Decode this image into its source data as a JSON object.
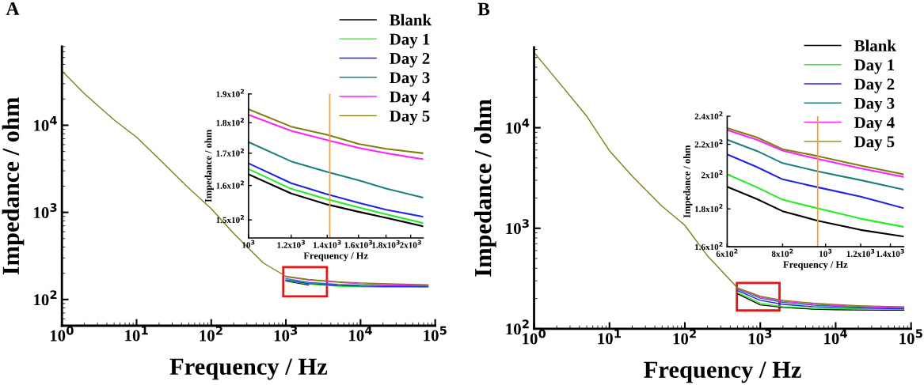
{
  "chart_data": [
    {
      "type": "line",
      "title": "A",
      "xlabel": "Frequency / Hz",
      "ylabel": "Impedance / ohm",
      "log": "xy",
      "legend": "top right",
      "x": [
        1,
        2,
        5,
        10,
        20,
        50,
        100,
        200,
        500,
        1000,
        2000,
        5000,
        10000,
        20000,
        50000,
        80000
      ],
      "xlim": [
        1,
        100000
      ],
      "ylim": [
        50,
        80000
      ],
      "xticks": [
        {
          "value": 1,
          "label": "10$^{0}$"
        },
        {
          "value": 10,
          "label": "10$^{1}$"
        },
        {
          "value": 100,
          "label": "10$^{2}$"
        },
        {
          "value": 1000,
          "label": "10$^{3}$"
        },
        {
          "value": 10000,
          "label": "10$^{4}$"
        },
        {
          "value": 100000,
          "label": "10$^{5}$"
        }
      ],
      "yticks": [
        {
          "value": 100,
          "label": "10$^{2}$"
        },
        {
          "value": 1000,
          "label": "10$^{3}$"
        },
        {
          "value": 10000,
          "label": "10$^{4}$"
        }
      ],
      "series": [
        {
          "name": "Blank",
          "color": "#000000",
          "x": [
            1000,
            2000
          ],
          "values": [
            163,
            147
          ]
        },
        {
          "name": "Day 1",
          "color": "#22ee22",
          "x": [
            1000,
            2000,
            5000,
            10000,
            20000,
            50000,
            80000
          ],
          "values": [
            165,
            150,
            142,
            140,
            139,
            138.5,
            138
          ]
        },
        {
          "name": "Day 2",
          "color": "#2222ee",
          "x": [
            1000,
            2000,
            5000,
            10000,
            20000,
            50000,
            80000
          ],
          "values": [
            167,
            152.5,
            145,
            142.5,
            141.5,
            141,
            140.5
          ]
        },
        {
          "name": "Day 3",
          "color": "#1a8080",
          "x": [
            1000,
            2000,
            5000,
            10000,
            20000,
            50000,
            80000
          ],
          "values": [
            173.5,
            157,
            149,
            145.5,
            144,
            143.5,
            143
          ]
        },
        {
          "name": "Day 4",
          "color": "#ff22ff",
          "x": [
            1000,
            2000,
            5000,
            10000,
            20000,
            50000,
            80000
          ],
          "values": [
            182.5,
            168,
            158,
            151,
            148,
            146.5,
            145.5
          ]
        },
        {
          "name": "Day 5",
          "color": "#808010",
          "values": [
            42000,
            23000,
            11500,
            7300,
            4100,
            1900,
            1100,
            573,
            262,
            184.5,
            170,
            160,
            155,
            152,
            149,
            148
          ]
        }
      ]
    },
    {
      "type": "line",
      "xlabel": "Frequency / Hz",
      "ylabel": "Impedance / ohm",
      "log": "xy",
      "x": [
        1000,
        1200,
        1400,
        1600,
        1800,
        2108
      ],
      "xlim": [
        1000,
        2110
      ],
      "ylim": [
        145,
        190
      ],
      "xticks": [
        {
          "value": 1000,
          "label": "10$^{3}$"
        },
        {
          "value": 1200,
          "label": "1.2x10$^{3}$"
        },
        {
          "value": 1400,
          "label": "1.4x10$^{3}$"
        },
        {
          "value": 1600,
          "label": "1.6x10$^{3}$"
        },
        {
          "value": 1800,
          "label": "1.8x10$^{3}$"
        },
        {
          "value": 2000,
          "label": "2x10$^{3}$"
        }
      ],
      "yticks": [
        {
          "value": 150,
          "label": "1.5x10$^{2}$"
        },
        {
          "value": 160,
          "label": "1.6x10$^{2}$"
        },
        {
          "value": 170,
          "label": "1.7x10$^{2}$"
        },
        {
          "value": 180,
          "label": "1.8x10$^{2}$"
        },
        {
          "value": 190,
          "label": "1.9x10$^{2}$"
        }
      ],
      "ref_lines": [
        {
          "axis": "x",
          "value": 1415,
          "color": "#ff9933"
        }
      ],
      "series": [
        {
          "color": "#000000",
          "values": [
            163.4,
            157.6,
            154.4,
            152.3,
            150.6,
            148.2
          ]
        },
        {
          "color": "#22ee22",
          "values": [
            165,
            159,
            155.9,
            153.6,
            151.6,
            149.1
          ]
        },
        {
          "color": "#2222ee",
          "values": [
            166.8,
            160.7,
            157.4,
            154.9,
            152.9,
            150.9
          ]
        },
        {
          "color": "#1a8080",
          "values": [
            173.6,
            167.4,
            164.1,
            161.6,
            159.1,
            156.4
          ]
        },
        {
          "color": "#ff22ff",
          "values": [
            182.7,
            177.3,
            174.2,
            171.7,
            170,
            168.1
          ]
        },
        {
          "color": "#808010",
          "values": [
            184.6,
            178.7,
            176,
            173,
            171.4,
            170
          ]
        }
      ]
    },
    {
      "type": "line",
      "title": "B",
      "xlabel": "Frequency / Hz",
      "ylabel": "Impedance / ohm",
      "log": "xy",
      "legend": "top right",
      "x": [
        1,
        2,
        5,
        10,
        20,
        50,
        100,
        200,
        500,
        1000,
        2000,
        5000,
        10000,
        20000,
        50000,
        80000
      ],
      "xlim": [
        1,
        100000
      ],
      "ylim": [
        100,
        63000
      ],
      "xticks": [
        {
          "value": 1,
          "label": "10$^{0}$"
        },
        {
          "value": 10,
          "label": "10$^{1}$"
        },
        {
          "value": 100,
          "label": "10$^{2}$"
        },
        {
          "value": 1000,
          "label": "10$^{3}$"
        },
        {
          "value": 10000,
          "label": "10$^{4}$"
        },
        {
          "value": 100000,
          "label": "10$^{5}$"
        }
      ],
      "yticks": [
        {
          "value": 100,
          "label": "10$^{2}$"
        },
        {
          "value": 1000,
          "label": "10$^{3}$"
        },
        {
          "value": 10000,
          "label": "10$^{4}$"
        }
      ],
      "series": [
        {
          "name": "Blank",
          "color": "#000000",
          "x": [
            500,
            1000,
            2000,
            5000,
            10000,
            20000,
            50000,
            80000
          ],
          "values": [
            223,
            173,
            163,
            157,
            155,
            154,
            153,
            153
          ]
        },
        {
          "name": "Day 1",
          "color": "#22ee22",
          "x": [
            500,
            1000,
            2000,
            5000,
            10000,
            20000,
            50000,
            80000
          ],
          "values": [
            230,
            180,
            166,
            160,
            158,
            157,
            156,
            156
          ]
        },
        {
          "name": "Day 2",
          "color": "#2222ee",
          "x": [
            500,
            1000,
            2000,
            5000,
            10000,
            20000,
            50000,
            80000
          ],
          "values": [
            240,
            192,
            175,
            166,
            163,
            161,
            159,
            158.5
          ]
        },
        {
          "name": "Day 3",
          "color": "#1a8080",
          "x": [
            500,
            1000,
            2000,
            5000,
            10000,
            20000,
            50000,
            80000
          ],
          "values": [
            247,
            202,
            183,
            172,
            168,
            165,
            162,
            161
          ]
        },
        {
          "name": "Day 4",
          "color": "#ff22ff",
          "x": [
            500,
            1000,
            2000,
            5000,
            10000,
            20000,
            50000,
            80000
          ],
          "values": [
            252,
            207,
            188,
            176,
            171,
            167,
            164,
            163
          ]
        },
        {
          "name": "Day 5",
          "color": "#808010",
          "values": [
            56000,
            30000,
            13000,
            5900,
            3300,
            1650,
            1070,
            530,
            255,
            211,
            192,
            180,
            174,
            170,
            167,
            166
          ]
        }
      ]
    },
    {
      "type": "line",
      "xlabel": "Frequency / Hz",
      "ylabel": "Impedance / ohm",
      "log": "xy",
      "x": [
        600,
        700,
        800,
        960,
        1200,
        1500
      ],
      "xlim": [
        600,
        1500
      ],
      "ylim": [
        160,
        240
      ],
      "xticks": [
        {
          "value": 600,
          "label": "6x10$^{2}$"
        },
        {
          "value": 800,
          "label": "8x10$^{2}$"
        },
        {
          "value": 1000,
          "label": "10$^{3}$"
        },
        {
          "value": 1200,
          "label": "1.2x10$^{3}$"
        },
        {
          "value": 1400,
          "label": "1.4x10$^{3}$"
        }
      ],
      "yticks": [
        {
          "value": 160,
          "label": "1.6x10$^{2}$"
        },
        {
          "value": 180,
          "label": "1.8x10$^{2}$"
        },
        {
          "value": 200,
          "label": "2x10$^{2}$"
        },
        {
          "value": 220,
          "label": "2.2x10$^{2}$"
        },
        {
          "value": 240,
          "label": "2.4x10$^{2}$"
        }
      ],
      "ref_lines": [
        {
          "axis": "x",
          "value": 960,
          "color": "#ff9933"
        }
      ],
      "series": [
        {
          "color": "#000000",
          "values": [
            192.8,
            185.6,
            178.7,
            173.5,
            168.6,
            165.2
          ]
        },
        {
          "color": "#22ee22",
          "values": [
            200.4,
            192.5,
            185.2,
            180.3,
            174.6,
            170.2
          ]
        },
        {
          "color": "#2222ee",
          "values": [
            213.2,
            205,
            197.3,
            192.5,
            187,
            180.4
          ]
        },
        {
          "color": "#1a8080",
          "values": [
            223.1,
            215.5,
            207.5,
            202.3,
            196.8,
            191.1
          ]
        },
        {
          "color": "#ff22ff",
          "values": [
            229.9,
            223.1,
            215.7,
            210.2,
            204.1,
            198.8
          ]
        },
        {
          "color": "#808010",
          "values": [
            231.4,
            224.8,
            216.7,
            212.1,
            205.9,
            200.4
          ]
        }
      ]
    }
  ]
}
